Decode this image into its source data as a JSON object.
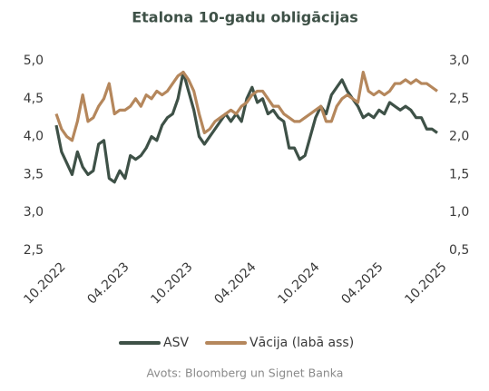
{
  "chart_data": {
    "type": "line",
    "title": "Etalona 10-gadu obligācijas",
    "source": "Avots: Bloomberg un Signet Banka",
    "categories": [
      "10.2022",
      null,
      null,
      null,
      null,
      null,
      null,
      null,
      null,
      null,
      null,
      null,
      "04.2023",
      null,
      null,
      null,
      null,
      null,
      null,
      null,
      null,
      null,
      null,
      null,
      "10.2023",
      null,
      null,
      null,
      null,
      null,
      null,
      null,
      null,
      null,
      null,
      null,
      "04.2024",
      null,
      null,
      null,
      null,
      null,
      null,
      null,
      null,
      null,
      null,
      null,
      "10.2024",
      null,
      null,
      null,
      null,
      null,
      null,
      null,
      null,
      null,
      null,
      null,
      "04.2025",
      null,
      null,
      null,
      null,
      null,
      null,
      null,
      null,
      null,
      null,
      null,
      "10.2025"
    ],
    "series": [
      {
        "name": "ASV",
        "color": "#3e5147",
        "axis": "y",
        "values": [
          4.15,
          3.8,
          3.65,
          3.5,
          3.8,
          3.6,
          3.5,
          3.55,
          3.9,
          3.95,
          3.45,
          3.4,
          3.55,
          3.45,
          3.75,
          3.7,
          3.75,
          3.85,
          4.0,
          3.95,
          4.15,
          4.25,
          4.3,
          4.5,
          4.85,
          4.6,
          4.35,
          4.0,
          3.9,
          4.0,
          4.1,
          4.2,
          4.3,
          4.2,
          4.3,
          4.2,
          4.5,
          4.65,
          4.45,
          4.5,
          4.3,
          4.35,
          4.25,
          4.2,
          3.85,
          3.85,
          3.7,
          3.75,
          4.0,
          4.25,
          4.4,
          4.3,
          4.55,
          4.65,
          4.75,
          4.6,
          4.5,
          4.4,
          4.25,
          4.3,
          4.25,
          4.35,
          4.3,
          4.45,
          4.4,
          4.35,
          4.4,
          4.35,
          4.25,
          4.25,
          4.1,
          4.1,
          4.05
        ]
      },
      {
        "name": "Vācija (labā ass)",
        "color": "#b5875c",
        "axis": "y2",
        "values": [
          2.3,
          2.1,
          2.0,
          1.95,
          2.2,
          2.55,
          2.2,
          2.25,
          2.4,
          2.5,
          2.7,
          2.3,
          2.35,
          2.35,
          2.4,
          2.5,
          2.4,
          2.55,
          2.5,
          2.6,
          2.55,
          2.6,
          2.7,
          2.8,
          2.85,
          2.75,
          2.6,
          2.3,
          2.05,
          2.1,
          2.2,
          2.25,
          2.3,
          2.35,
          2.3,
          2.4,
          2.45,
          2.55,
          2.6,
          2.6,
          2.5,
          2.4,
          2.4,
          2.3,
          2.25,
          2.2,
          2.2,
          2.25,
          2.3,
          2.35,
          2.4,
          2.2,
          2.2,
          2.4,
          2.5,
          2.55,
          2.5,
          2.45,
          2.85,
          2.6,
          2.55,
          2.6,
          2.55,
          2.6,
          2.7,
          2.7,
          2.75,
          2.7,
          2.75,
          2.7,
          2.7,
          2.65,
          2.6
        ]
      }
    ],
    "ylim": [
      2.5,
      5.0
    ],
    "yticks": [
      {
        "value": 2.5,
        "label": "2,5"
      },
      {
        "value": 3.0,
        "label": "3,0"
      },
      {
        "value": 3.5,
        "label": "3,5"
      },
      {
        "value": 4.0,
        "label": "4,0"
      },
      {
        "value": 4.5,
        "label": "4,5"
      },
      {
        "value": 5.0,
        "label": "5,0"
      }
    ],
    "y2lim": [
      0.5,
      3.0
    ],
    "y2ticks": [
      {
        "value": 0.5,
        "label": "0,5"
      },
      {
        "value": 1.0,
        "label": "1,0"
      },
      {
        "value": 1.5,
        "label": "1,5"
      },
      {
        "value": 2.0,
        "label": "2,0"
      },
      {
        "value": 2.5,
        "label": "2,5"
      },
      {
        "value": 3.0,
        "label": "3,0"
      }
    ],
    "grid": false,
    "legend": "bottom"
  }
}
